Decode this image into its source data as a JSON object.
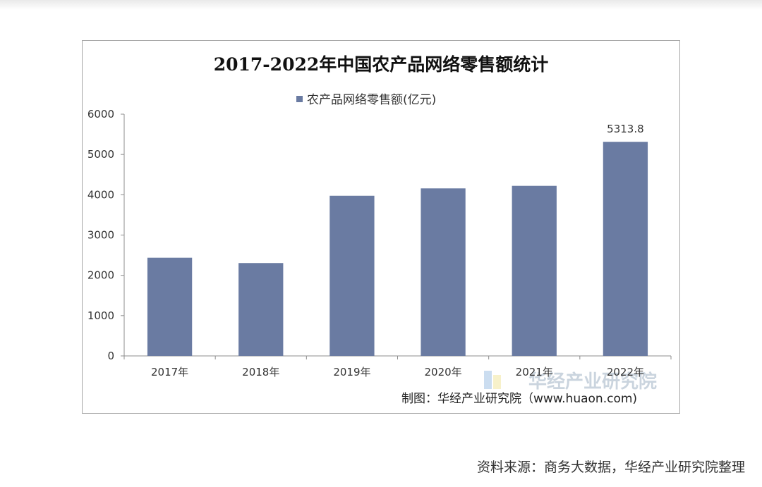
{
  "chart_data": {
    "type": "bar",
    "title": "2017-2022年中国农产品网络零售额统计",
    "categories": [
      "2017年",
      "2018年",
      "2019年",
      "2020年",
      "2021年",
      "2022年"
    ],
    "series": [
      {
        "name": "农产品网络零售额(亿元)",
        "values": [
          2437,
          2305,
          3975,
          4158,
          4221,
          5313.8
        ]
      }
    ],
    "data_labels": [
      "",
      "",
      "",
      "",
      "",
      "5313.8"
    ],
    "ylim": [
      0,
      6000
    ],
    "yticks": [
      "0",
      "1000",
      "2000",
      "3000",
      "4000",
      "5000",
      "6000"
    ],
    "xlabel": "",
    "ylabel": "",
    "legend_position": "top-center",
    "grid": false,
    "bar_color": "#6a7ba2"
  },
  "credit": "制图：华经产业研究院（www.huaon.com)",
  "watermark": "华经产业研究院",
  "source_note": "资料来源：商务大数据，华经产业研究院整理"
}
